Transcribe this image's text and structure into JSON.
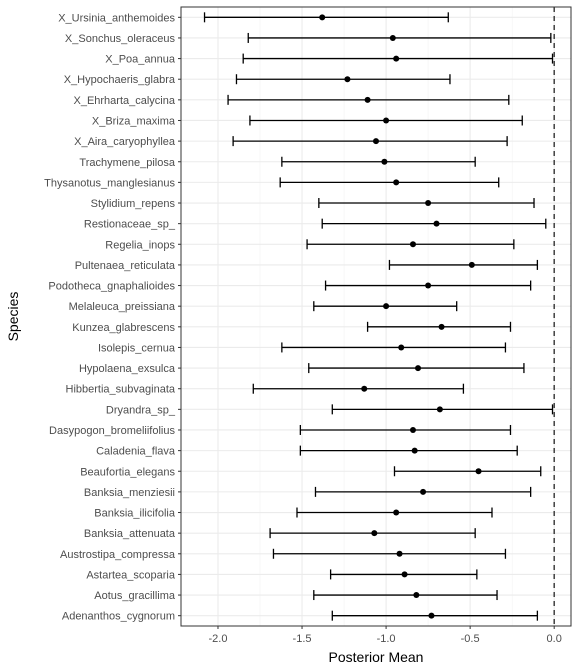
{
  "chart_data": {
    "type": "scatter",
    "subtype": "point-with-horizontal-error-bars",
    "xlabel": "Posterior Mean",
    "ylabel": "Species",
    "xlim": [
      -2.22,
      0.1
    ],
    "x_ticks": [
      -2.0,
      -1.5,
      -1.0,
      -0.5,
      0.0
    ],
    "x_tick_labels": [
      "-2.0",
      "-1.5",
      "-1.0",
      "-0.5",
      "0.0"
    ],
    "reference_line": {
      "x": 0.0,
      "style": "dashed"
    },
    "grid": true,
    "species": [
      {
        "name": "X_Ursinia_anthemoides",
        "mean": -1.38,
        "lower": -2.08,
        "upper": -0.63
      },
      {
        "name": "X_Sonchus_oleraceus",
        "mean": -0.96,
        "lower": -1.82,
        "upper": -0.02
      },
      {
        "name": "X_Poa_annua",
        "mean": -0.94,
        "lower": -1.85,
        "upper": -0.01
      },
      {
        "name": "X_Hypochaeris_glabra",
        "mean": -1.23,
        "lower": -1.89,
        "upper": -0.62
      },
      {
        "name": "X_Ehrharta_calycina",
        "mean": -1.11,
        "lower": -1.94,
        "upper": -0.27
      },
      {
        "name": "X_Briza_maxima",
        "mean": -1.0,
        "lower": -1.81,
        "upper": -0.19
      },
      {
        "name": "X_Aira_caryophyllea",
        "mean": -1.06,
        "lower": -1.91,
        "upper": -0.28
      },
      {
        "name": "Trachymene_pilosa",
        "mean": -1.01,
        "lower": -1.62,
        "upper": -0.47
      },
      {
        "name": "Thysanotus_manglesianus",
        "mean": -0.94,
        "lower": -1.63,
        "upper": -0.33
      },
      {
        "name": "Stylidium_repens",
        "mean": -0.75,
        "lower": -1.4,
        "upper": -0.12
      },
      {
        "name": "Restionaceae_sp_",
        "mean": -0.7,
        "lower": -1.38,
        "upper": -0.05
      },
      {
        "name": "Regelia_inops",
        "mean": -0.84,
        "lower": -1.47,
        "upper": -0.24
      },
      {
        "name": "Pultenaea_reticulata",
        "mean": -0.49,
        "lower": -0.98,
        "upper": -0.1
      },
      {
        "name": "Podotheca_gnaphalioides",
        "mean": -0.75,
        "lower": -1.36,
        "upper": -0.14
      },
      {
        "name": "Melaleuca_preissiana",
        "mean": -1.0,
        "lower": -1.43,
        "upper": -0.58
      },
      {
        "name": "Kunzea_glabrescens",
        "mean": -0.67,
        "lower": -1.11,
        "upper": -0.26
      },
      {
        "name": "Isolepis_cernua",
        "mean": -0.91,
        "lower": -1.62,
        "upper": -0.29
      },
      {
        "name": "Hypolaena_exsulca",
        "mean": -0.81,
        "lower": -1.46,
        "upper": -0.18
      },
      {
        "name": "Hibbertia_subvaginata",
        "mean": -1.13,
        "lower": -1.79,
        "upper": -0.54
      },
      {
        "name": "Dryandra_sp_",
        "mean": -0.68,
        "lower": -1.32,
        "upper": -0.01
      },
      {
        "name": "Dasypogon_bromeliifolius",
        "mean": -0.84,
        "lower": -1.51,
        "upper": -0.26
      },
      {
        "name": "Caladenia_flava",
        "mean": -0.83,
        "lower": -1.51,
        "upper": -0.22
      },
      {
        "name": "Beaufortia_elegans",
        "mean": -0.45,
        "lower": -0.95,
        "upper": -0.08
      },
      {
        "name": "Banksia_menziesii",
        "mean": -0.78,
        "lower": -1.42,
        "upper": -0.14
      },
      {
        "name": "Banksia_ilicifolia",
        "mean": -0.94,
        "lower": -1.53,
        "upper": -0.37
      },
      {
        "name": "Banksia_attenuata",
        "mean": -1.07,
        "lower": -1.69,
        "upper": -0.47
      },
      {
        "name": "Austrostipa_compressa",
        "mean": -0.92,
        "lower": -1.67,
        "upper": -0.29
      },
      {
        "name": "Astartea_scoparia",
        "mean": -0.89,
        "lower": -1.33,
        "upper": -0.46
      },
      {
        "name": "Aotus_gracillima",
        "mean": -0.82,
        "lower": -1.43,
        "upper": -0.34
      },
      {
        "name": "Adenanthos_cygnorum",
        "mean": -0.73,
        "lower": -1.32,
        "upper": -0.1
      }
    ]
  }
}
